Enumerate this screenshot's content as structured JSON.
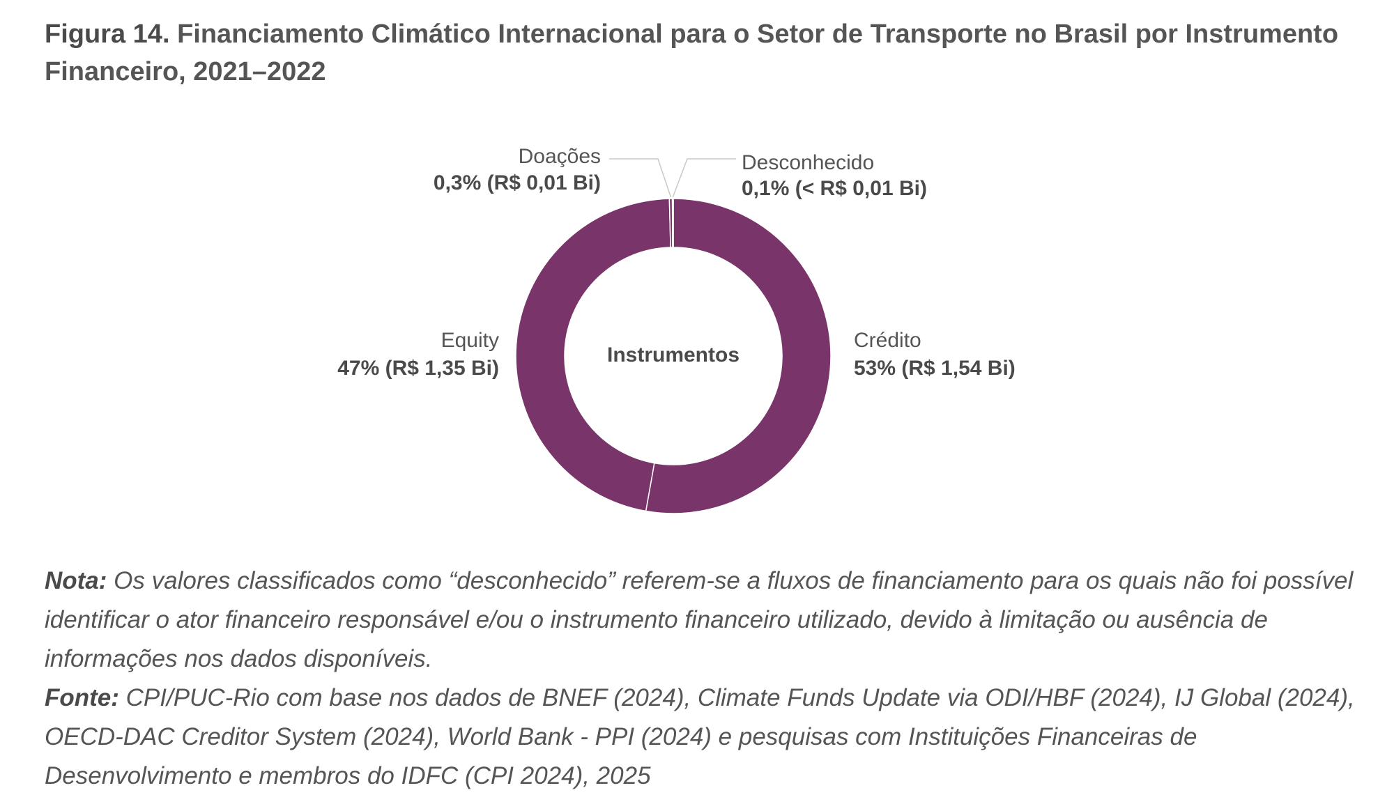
{
  "figure": {
    "label": "Figura 14.",
    "title": "Financiamento Climático Internacional para o Setor de Transporte no Brasil por Instrumento Financeiro, 2021–2022"
  },
  "chart_data": {
    "type": "pie",
    "center_label": "Instrumentos",
    "color": "#79356a",
    "slices": [
      {
        "name": "Crédito",
        "percent": 53,
        "value_text": "53% (R$ 1,54 Bi)",
        "value_bi": 1.54
      },
      {
        "name": "Equity",
        "percent": 47,
        "value_text": "47% (R$ 1,35 Bi)",
        "value_bi": 1.35
      },
      {
        "name": "Doações",
        "percent": 0.3,
        "value_text": "0,3% (R$ 0,01 Bi)",
        "value_bi": 0.01
      },
      {
        "name": "Desconhecido",
        "percent": 0.1,
        "value_text": "0,1% (< R$ 0,01 Bi)",
        "value_bi": null
      }
    ]
  },
  "notes": {
    "nota_label": "Nota:",
    "nota_text": " Os valores classificados como “desconhecido” referem-se a fluxos de financiamento para os quais não foi possível identificar o ator financeiro responsável e/ou o instrumento financeiro utilizado, devido à limitação ou ausência de informações nos dados disponíveis.",
    "fonte_label": "Fonte:",
    "fonte_text": " CPI/PUC-Rio com base nos dados de BNEF (2024), Climate Funds Update via ODI/HBF (2024), IJ Global (2024), OECD-DAC Creditor System (2024), World Bank - PPI (2024) e pesquisas com Instituições Financeiras de Desenvolvimento e membros do IDFC (CPI 2024), 2025"
  }
}
